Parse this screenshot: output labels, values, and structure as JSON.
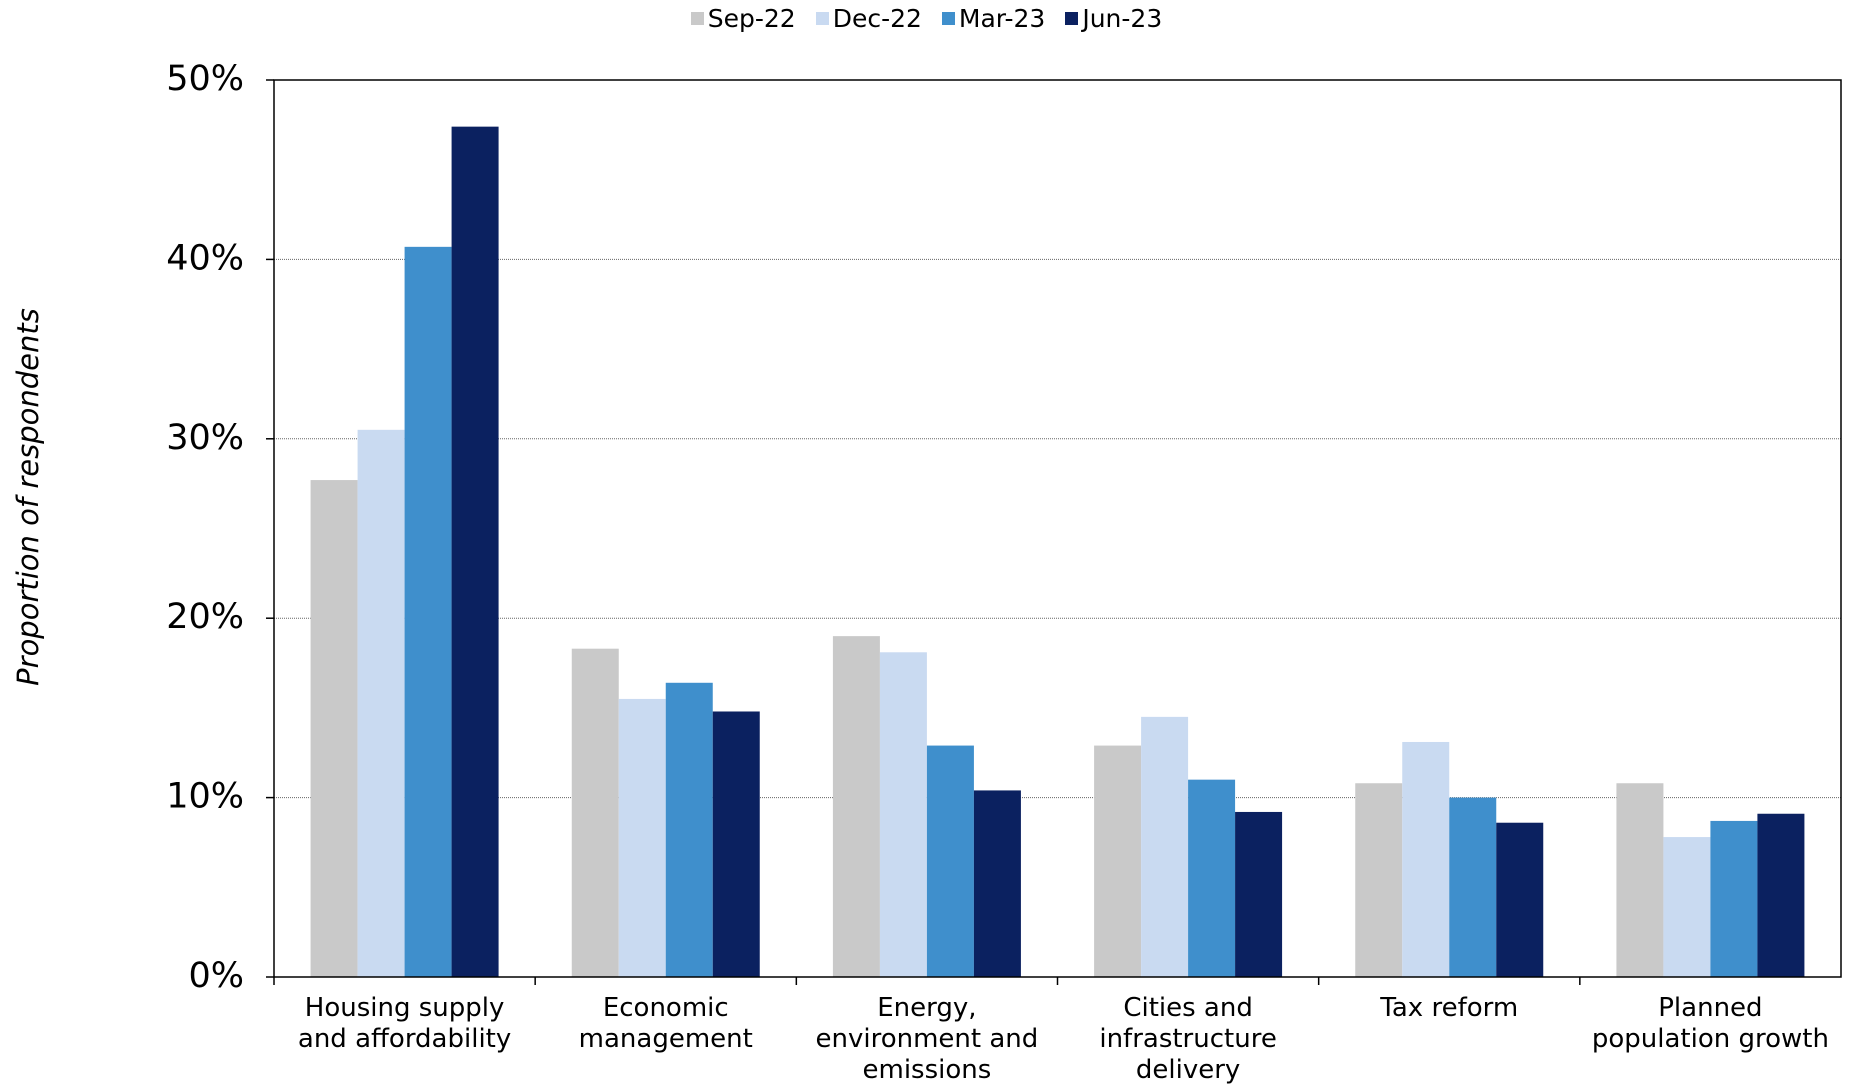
{
  "chart_data": {
    "type": "bar",
    "y_label": "Proportion of respondents",
    "categories": [
      "Housing supply and affordability",
      "Economic management",
      "Energy, environment and emissions",
      "Cities and infrastructure delivery",
      "Tax reform",
      "Planned population growth"
    ],
    "series": [
      {
        "name": "Sep-22",
        "color": "#c9c9c9",
        "values": [
          27.7,
          18.3,
          19.0,
          12.9,
          10.8,
          10.8
        ]
      },
      {
        "name": "Dec-22",
        "color": "#c9daf1",
        "values": [
          30.5,
          15.5,
          18.1,
          14.5,
          13.1,
          7.8
        ]
      },
      {
        "name": "Mar-23",
        "color": "#3f8fcc",
        "values": [
          40.7,
          16.4,
          12.9,
          11.0,
          10.0,
          8.7
        ]
      },
      {
        "name": "Jun-23",
        "color": "#0b2160",
        "values": [
          47.4,
          14.8,
          10.4,
          9.2,
          8.6,
          9.1
        ]
      }
    ],
    "ylim": [
      0,
      50
    ],
    "yticks": [
      {
        "value": 0,
        "label": "0%"
      },
      {
        "value": 10,
        "label": "10%"
      },
      {
        "value": 20,
        "label": "20%"
      },
      {
        "value": 30,
        "label": "30%"
      },
      {
        "value": 40,
        "label": "40%"
      },
      {
        "value": 50,
        "label": "50%"
      }
    ],
    "grid": true,
    "legend": "top"
  }
}
